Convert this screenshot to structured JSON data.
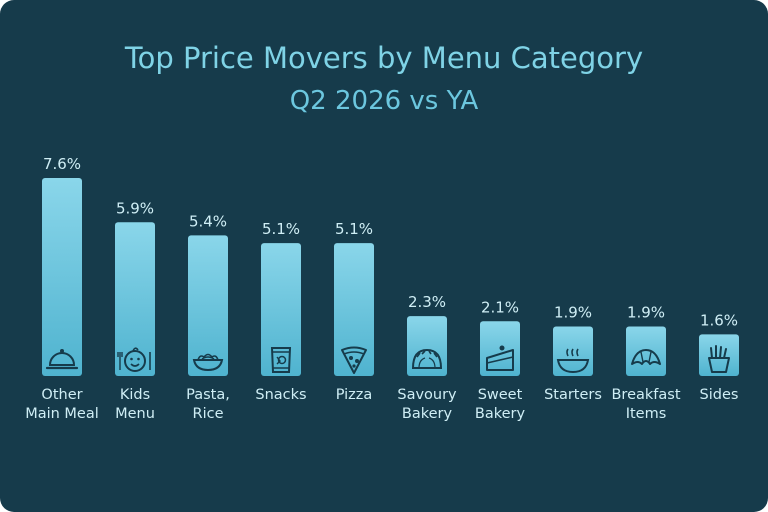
{
  "chart_data": {
    "type": "bar",
    "title": "Top Price Movers by Menu Category",
    "subtitle": "Q2 2026 vs YA",
    "categories": [
      [
        "Other",
        "Main Meal"
      ],
      [
        "Kids",
        "Menu"
      ],
      [
        "Pasta,",
        "Rice"
      ],
      [
        "Snacks"
      ],
      [
        "Pizza"
      ],
      [
        "Savoury",
        "Bakery"
      ],
      [
        "Sweet",
        "Bakery"
      ],
      [
        "Starters"
      ],
      [
        "Breakfast",
        "Items"
      ],
      [
        "Sides"
      ]
    ],
    "values": [
      7.6,
      5.9,
      5.4,
      5.1,
      5.1,
      2.3,
      2.1,
      1.9,
      1.9,
      1.6
    ],
    "value_labels": [
      "7.6%",
      "5.9%",
      "5.4%",
      "5.1%",
      "5.1%",
      "2.3%",
      "2.1%",
      "1.9%",
      "1.9%",
      "1.6%"
    ],
    "icons": [
      "cloche-icon",
      "child-face-icon",
      "pasta-bowl-icon",
      "chips-bag-icon",
      "pizza-slice-icon",
      "pasty-icon",
      "cake-slice-icon",
      "soup-bowl-icon",
      "croissant-icon",
      "fries-icon"
    ],
    "xlabel": "",
    "ylabel": "",
    "ylim": [
      0,
      7.6
    ],
    "grid": false,
    "colors": {
      "background": "#163b4b",
      "bar_top": "#8ad6ea",
      "bar_bottom": "#4fb3cf",
      "title": "#7fd3e6",
      "text": "#cfeef5",
      "icon": "#163b4b"
    }
  }
}
